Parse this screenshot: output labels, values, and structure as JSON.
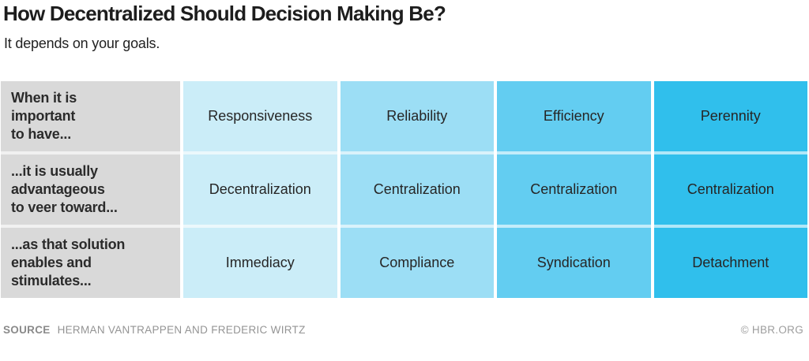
{
  "title": "How Decentralized Should Decision Making Be?",
  "subtitle": "It depends on your goals.",
  "chart_data": {
    "type": "table",
    "title": "How Decentralized Should Decision Making Be?",
    "subtitle": "It depends on your goals.",
    "row_labels": [
      "When it is\nimportant\nto have...",
      "...it is usually\nadvantageous\nto veer toward...",
      "...as that solution\nenables and\nstimulates..."
    ],
    "columns": [
      {
        "color": "#cbedf8",
        "cells": [
          "Responsiveness",
          "Decentralization",
          "Immediacy"
        ]
      },
      {
        "color": "#9cdef5",
        "cells": [
          "Reliability",
          "Centralization",
          "Compliance"
        ]
      },
      {
        "color": "#63cdf1",
        "cells": [
          "Efficiency",
          "Centralization",
          "Syndication"
        ]
      },
      {
        "color": "#30bfec",
        "cells": [
          "Perennity",
          "Centralization",
          "Detachment"
        ]
      }
    ],
    "layout_hints": {
      "label_column_background": "#d9d9d9",
      "column_shading": "light blue to dark blue, left to right",
      "gridlines": "white gaps between cells"
    }
  },
  "footer": {
    "source_label": "SOURCE",
    "source_text": "HERMAN VANTRAPPEN AND FREDERIC WIRTZ",
    "credit": "© HBR.ORG"
  }
}
